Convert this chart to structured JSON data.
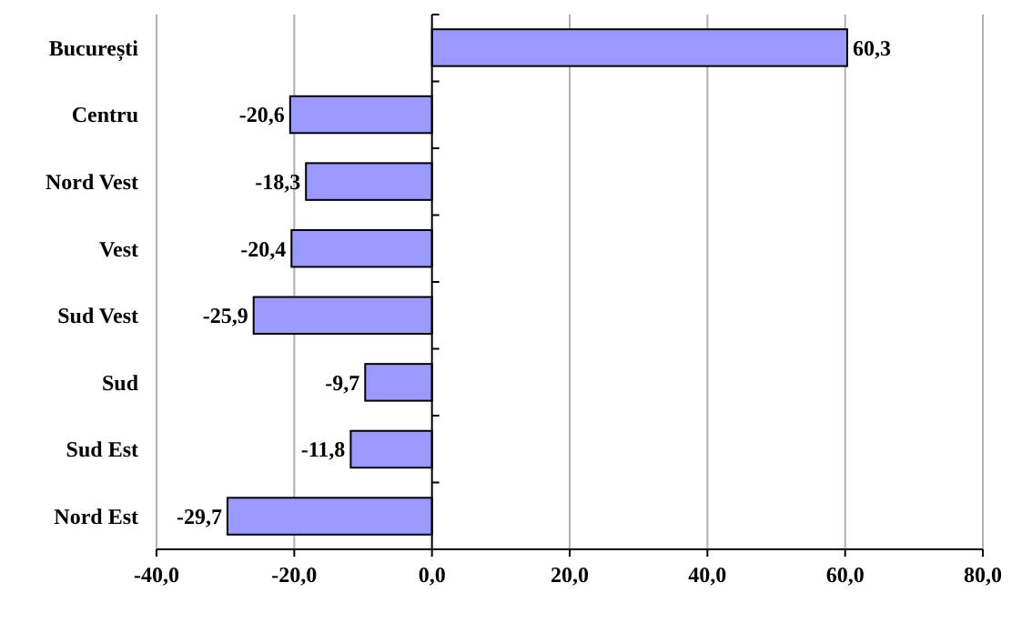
{
  "chart_data": {
    "type": "bar",
    "orientation": "horizontal",
    "categories": [
      "București",
      "Centru",
      "Nord Vest",
      "Vest",
      "Sud Vest",
      "Sud",
      "Sud Est",
      "Nord Est"
    ],
    "values": [
      60.3,
      -20.6,
      -18.3,
      -20.4,
      -25.9,
      -9.7,
      -11.8,
      -29.7
    ],
    "value_labels": [
      "60,3",
      "-20,6",
      "-18,3",
      "-20,4",
      "-25,9",
      "-9,7",
      "-11,8",
      "-29,7"
    ],
    "color": "#9999ff",
    "xlim": [
      -40,
      80
    ],
    "xticks": [
      {
        "value": -40,
        "label": "-40,0"
      },
      {
        "value": -20,
        "label": "-20,0"
      },
      {
        "value": 0,
        "label": "0,0"
      },
      {
        "value": 20,
        "label": "20,0"
      },
      {
        "value": 40,
        "label": "40,0"
      },
      {
        "value": 60,
        "label": "60,0"
      },
      {
        "value": 80,
        "label": "80,0"
      }
    ],
    "grid": "x"
  }
}
